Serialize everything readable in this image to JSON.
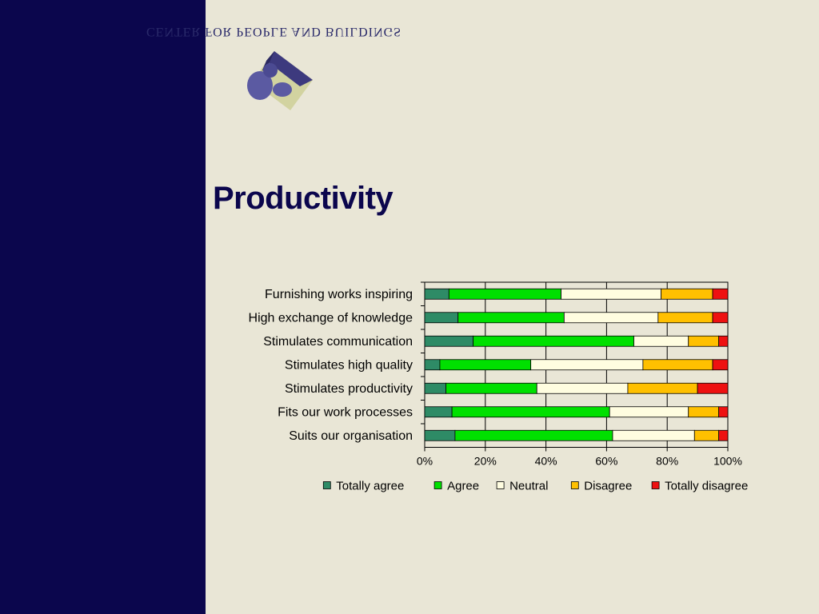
{
  "branding": {
    "org_name": "CENTER FOR PEOPLE AND BUILDINGS",
    "logo_icon": "cube-with-figure-logo",
    "colors": {
      "sidebar": "#0b064d",
      "background": "#e9e6d6",
      "title": "#0b064d"
    }
  },
  "slide": {
    "title": "Productivity"
  },
  "chart_data": {
    "type": "bar",
    "orientation": "horizontal",
    "stacked": "percent",
    "categories": [
      "Furnishing works inspiring",
      "High exchange of knowledge",
      "Stimulates communication",
      "Stimulates high quality",
      "Stimulates productivity",
      "Fits our work processes",
      "Suits our organisation"
    ],
    "series": [
      {
        "name": "Totally agree",
        "color": "#2e8b66",
        "values": [
          8,
          11,
          16,
          5,
          7,
          9,
          10
        ]
      },
      {
        "name": "Agree",
        "color": "#00e000",
        "values": [
          37,
          35,
          53,
          30,
          30,
          52,
          52
        ]
      },
      {
        "name": "Neutral",
        "color": "#fffde0",
        "values": [
          33,
          31,
          18,
          37,
          30,
          26,
          27
        ]
      },
      {
        "name": "Disagree",
        "color": "#ffc000",
        "values": [
          17,
          18,
          10,
          23,
          23,
          10,
          8
        ]
      },
      {
        "name": "Totally disagree",
        "color": "#ee1111",
        "values": [
          5,
          5,
          3,
          5,
          10,
          3,
          3
        ]
      }
    ],
    "xlim": [
      0,
      100
    ],
    "x_ticks": [
      "0%",
      "20%",
      "40%",
      "60%",
      "80%",
      "100%"
    ],
    "grid": "vertical",
    "legend": "bottom"
  }
}
